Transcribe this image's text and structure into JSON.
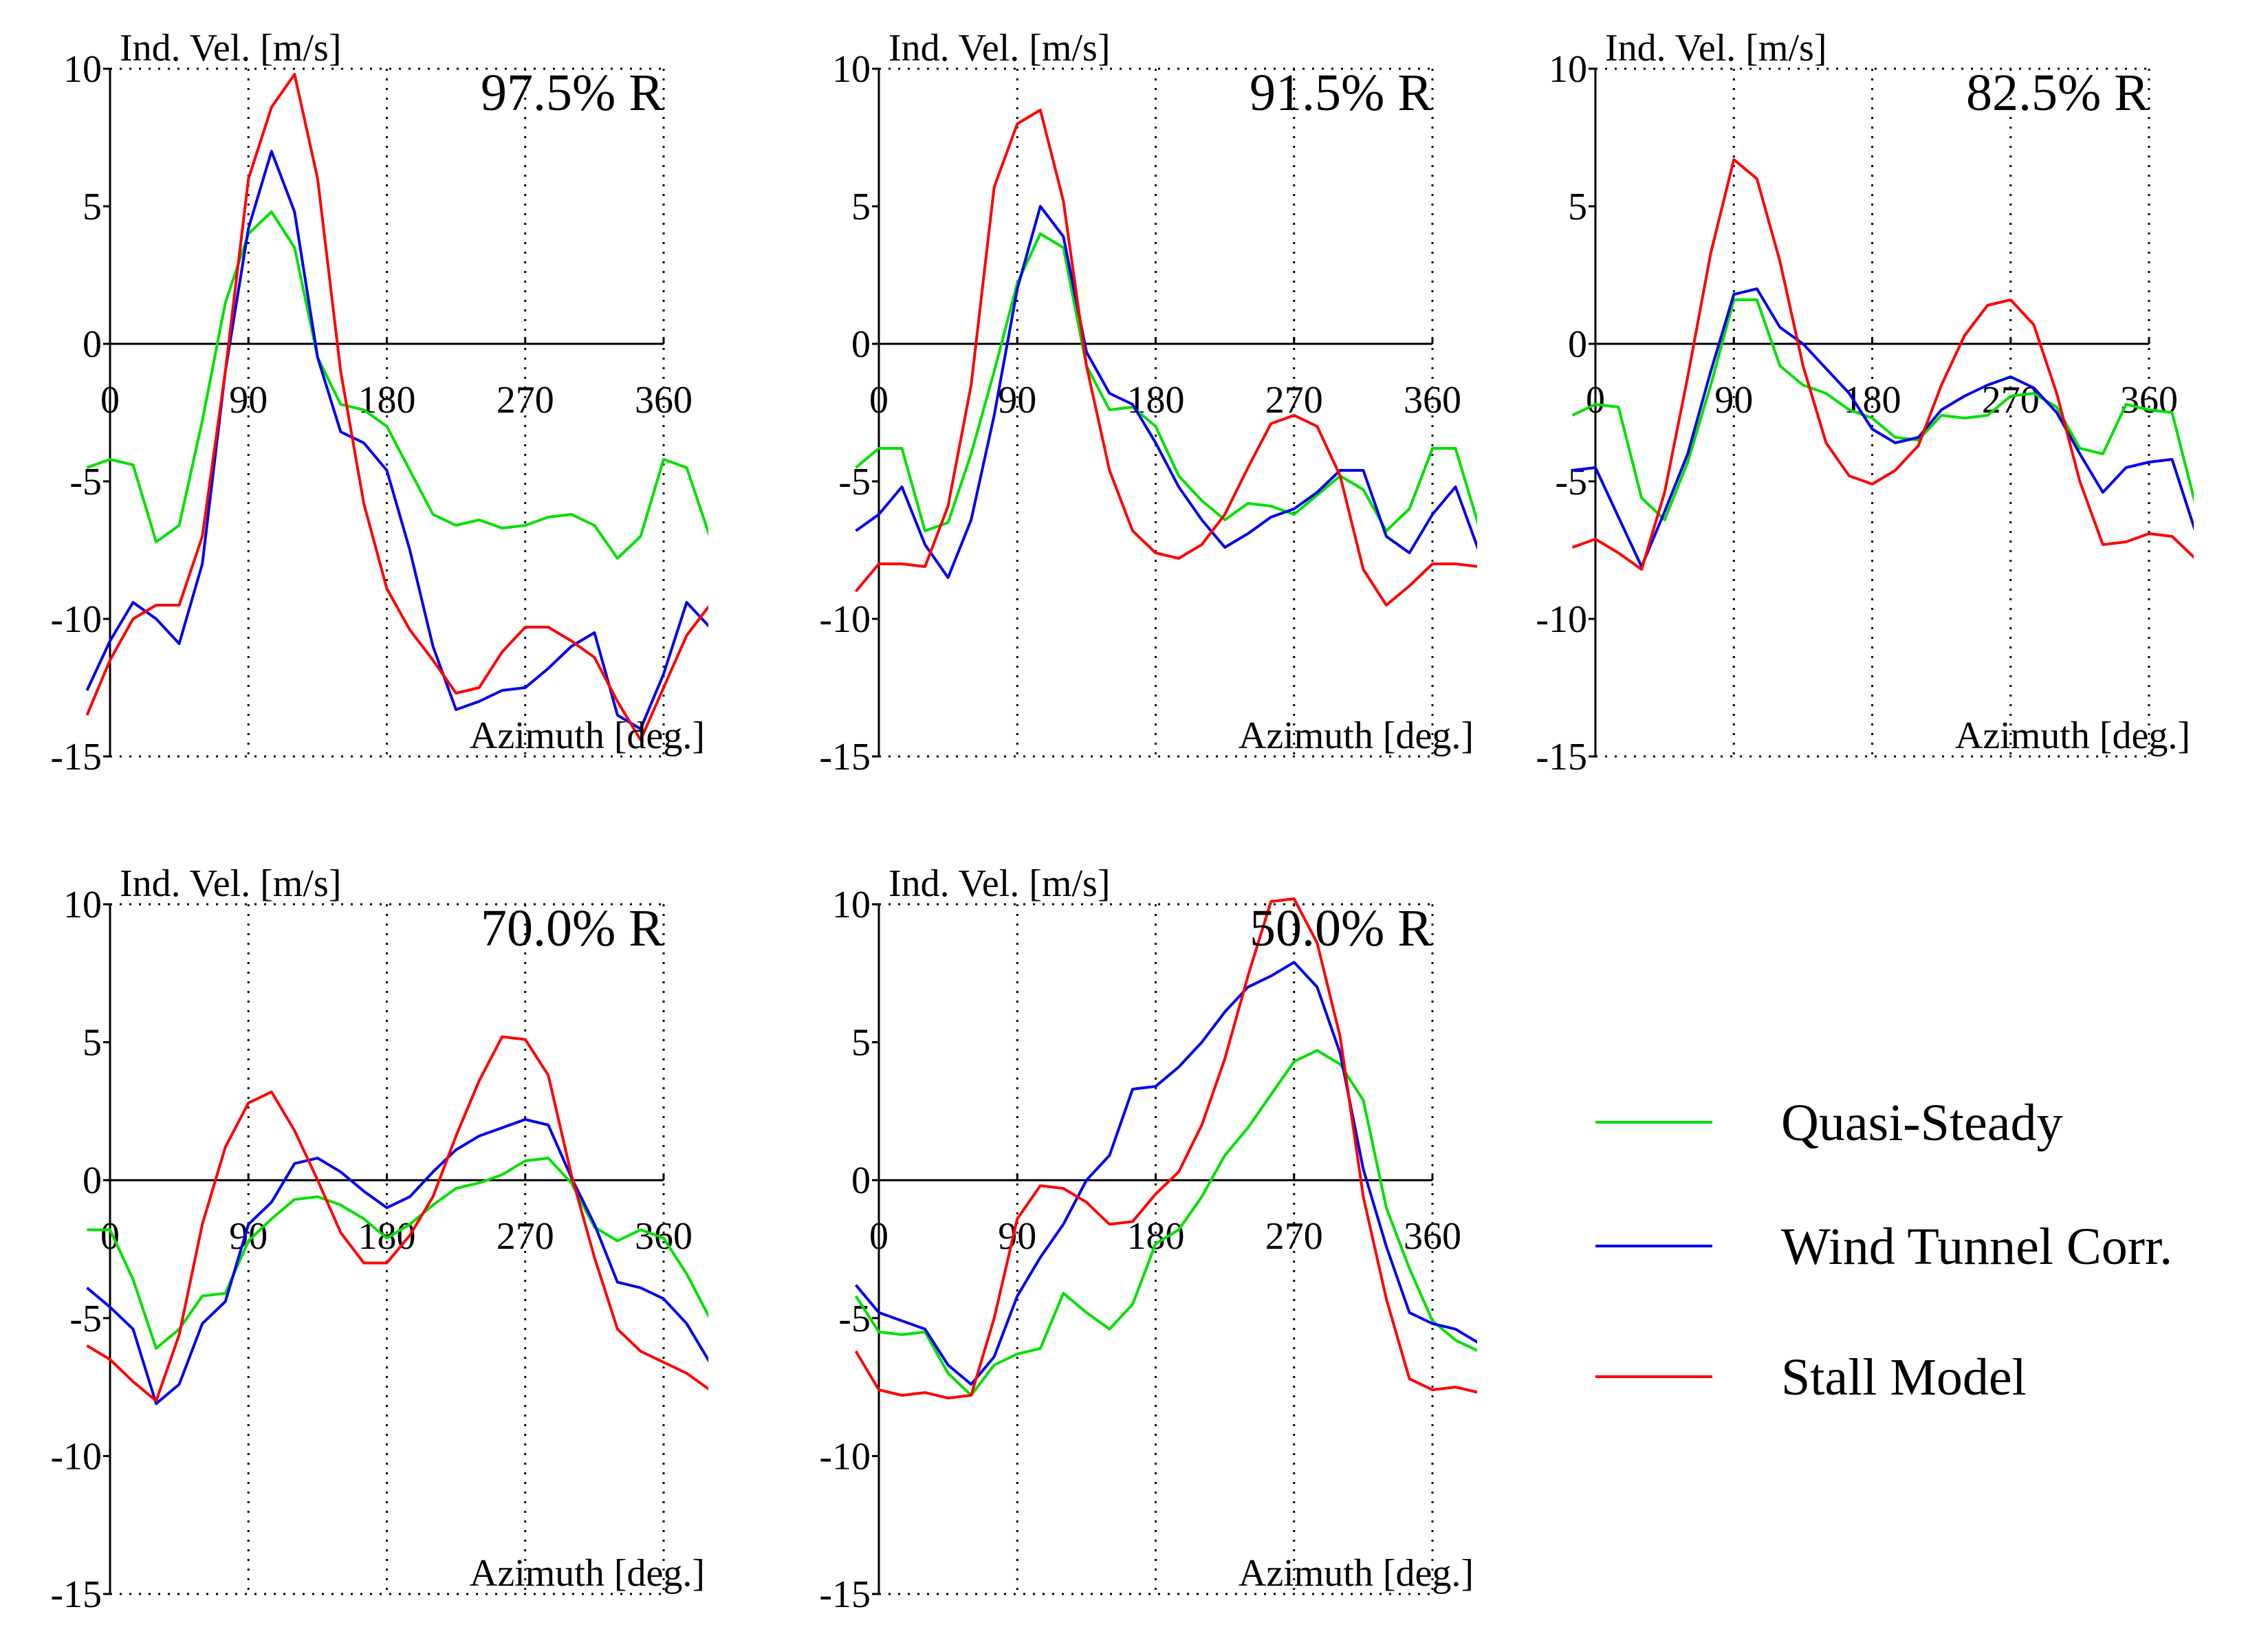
{
  "chart_data": [
    {
      "type": "line",
      "title": "97.5% R",
      "xlabel": "Azimuth [deg.]",
      "ylabel": "Ind. Vel. [m/s]",
      "xlim": [
        0,
        360
      ],
      "ylim": [
        -15,
        10
      ],
      "xticks": [
        0,
        90,
        180,
        270,
        360
      ],
      "yticks": [
        10,
        5,
        0,
        -5,
        -10,
        -15
      ],
      "grid": "dotted",
      "series": [
        {
          "name": "Quasi-Steady",
          "color": "#00e000",
          "x": [
            -15,
            0,
            15,
            30,
            45,
            60,
            75,
            90,
            105,
            120,
            135,
            150,
            165,
            180,
            195,
            210,
            225,
            240,
            255,
            270,
            285,
            300,
            315,
            330,
            345,
            360,
            375,
            390
          ],
          "y": [
            -4.5,
            -4.2,
            -4.4,
            -7.2,
            -6.6,
            -2.8,
            1.5,
            4.0,
            4.8,
            3.5,
            -0.5,
            -2.2,
            -2.4,
            -3.0,
            -4.6,
            -6.2,
            -6.6,
            -6.4,
            -6.7,
            -6.6,
            -6.3,
            -6.2,
            -6.6,
            -7.8,
            -7.0,
            -4.2,
            -4.5,
            -7.0
          ]
        },
        {
          "name": "Wind Tunnel Corr.",
          "color": "#0000ee",
          "x": [
            -15,
            0,
            15,
            30,
            45,
            60,
            75,
            90,
            105,
            120,
            135,
            150,
            165,
            180,
            195,
            210,
            225,
            240,
            255,
            270,
            285,
            300,
            315,
            330,
            345,
            360,
            375,
            390
          ],
          "y": [
            -12.6,
            -10.8,
            -9.4,
            -10.0,
            -10.9,
            -8.0,
            -1.0,
            4.2,
            7.0,
            4.8,
            -0.5,
            -3.2,
            -3.6,
            -4.6,
            -7.5,
            -11.0,
            -13.3,
            -13.0,
            -12.6,
            -12.5,
            -11.8,
            -11.0,
            -10.5,
            -13.5,
            -14.0,
            -12.0,
            -9.4,
            -10.3
          ]
        },
        {
          "name": "Stall Model",
          "color": "#ff0000",
          "x": [
            -15,
            0,
            15,
            30,
            45,
            60,
            75,
            90,
            105,
            120,
            135,
            150,
            165,
            180,
            195,
            210,
            225,
            240,
            255,
            270,
            285,
            300,
            315,
            330,
            345,
            360,
            375,
            390
          ],
          "y": [
            -13.5,
            -11.5,
            -10.0,
            -9.5,
            -9.5,
            -7.0,
            -1.0,
            6.0,
            8.6,
            9.8,
            6.0,
            -1.0,
            -5.8,
            -8.9,
            -10.4,
            -11.5,
            -12.7,
            -12.5,
            -11.2,
            -10.3,
            -10.3,
            -10.8,
            -11.4,
            -13.0,
            -14.4,
            -12.5,
            -10.6,
            -9.5
          ]
        }
      ]
    },
    {
      "type": "line",
      "title": "91.5% R",
      "xlabel": "Azimuth [deg.]",
      "ylabel": "Ind. Vel. [m/s]",
      "xlim": [
        0,
        360
      ],
      "ylim": [
        -15,
        10
      ],
      "xticks": [
        0,
        90,
        180,
        270,
        360
      ],
      "yticks": [
        10,
        5,
        0,
        -5,
        -10,
        -15
      ],
      "grid": "dotted",
      "series": [
        {
          "name": "Quasi-Steady",
          "color": "#00e000",
          "x": [
            -15,
            0,
            15,
            30,
            45,
            60,
            75,
            90,
            105,
            120,
            135,
            150,
            165,
            180,
            195,
            210,
            225,
            240,
            255,
            270,
            285,
            300,
            315,
            330,
            345,
            360,
            375,
            390
          ],
          "y": [
            -4.5,
            -3.8,
            -3.8,
            -6.8,
            -6.5,
            -4.0,
            -1.0,
            2.2,
            4.0,
            3.5,
            -0.8,
            -2.4,
            -2.3,
            -3.0,
            -4.8,
            -5.7,
            -6.4,
            -5.8,
            -5.9,
            -6.2,
            -5.5,
            -4.8,
            -5.3,
            -6.8,
            -6.0,
            -3.8,
            -3.8,
            -6.6
          ]
        },
        {
          "name": "Wind Tunnel Corr.",
          "color": "#0000ee",
          "x": [
            -15,
            0,
            15,
            30,
            45,
            60,
            75,
            90,
            105,
            120,
            135,
            150,
            165,
            180,
            195,
            210,
            225,
            240,
            255,
            270,
            285,
            300,
            315,
            330,
            345,
            360,
            375,
            390
          ],
          "y": [
            -6.8,
            -6.2,
            -5.2,
            -7.3,
            -8.5,
            -6.4,
            -2.6,
            2.0,
            5.0,
            3.9,
            -0.3,
            -1.8,
            -2.2,
            -3.6,
            -5.2,
            -6.4,
            -7.4,
            -6.9,
            -6.3,
            -6.0,
            -5.4,
            -4.6,
            -4.6,
            -7.0,
            -7.6,
            -6.2,
            -5.2,
            -7.5
          ]
        },
        {
          "name": "Stall Model",
          "color": "#ff0000",
          "x": [
            -15,
            0,
            15,
            30,
            45,
            60,
            75,
            90,
            105,
            120,
            135,
            150,
            165,
            180,
            195,
            210,
            225,
            240,
            255,
            270,
            285,
            300,
            315,
            330,
            345,
            360,
            375,
            390
          ],
          "y": [
            -9.0,
            -8.0,
            -8.0,
            -8.1,
            -5.9,
            -1.5,
            5.7,
            8.0,
            8.5,
            5.2,
            -0.8,
            -4.6,
            -6.8,
            -7.6,
            -7.8,
            -7.3,
            -6.2,
            -4.5,
            -2.9,
            -2.6,
            -3.0,
            -4.8,
            -8.2,
            -9.5,
            -8.8,
            -8.0,
            -8.0,
            -8.1
          ]
        }
      ]
    },
    {
      "type": "line",
      "title": "82.5% R",
      "xlabel": "Azimuth [deg.]",
      "ylabel": "Ind. Vel. [m/s]",
      "xlim": [
        0,
        360
      ],
      "ylim": [
        -15,
        10
      ],
      "xticks": [
        0,
        90,
        180,
        270,
        360
      ],
      "yticks": [
        10,
        5,
        0,
        -5,
        -10,
        -15
      ],
      "grid": "dotted",
      "series": [
        {
          "name": "Quasi-Steady",
          "color": "#00e000",
          "x": [
            -15,
            0,
            15,
            30,
            45,
            60,
            75,
            90,
            105,
            120,
            135,
            150,
            165,
            180,
            195,
            210,
            225,
            240,
            255,
            270,
            285,
            300,
            315,
            330,
            345,
            360,
            375,
            390
          ],
          "y": [
            -2.6,
            -2.2,
            -2.3,
            -5.6,
            -6.4,
            -4.3,
            -1.5,
            1.6,
            1.6,
            -0.8,
            -1.5,
            -1.8,
            -2.4,
            -2.7,
            -3.4,
            -3.5,
            -2.6,
            -2.7,
            -2.6,
            -1.9,
            -1.8,
            -2.3,
            -3.8,
            -4.0,
            -2.2,
            -2.4,
            -2.5,
            -5.8
          ]
        },
        {
          "name": "Wind Tunnel Corr.",
          "color": "#0000ee",
          "x": [
            -15,
            0,
            15,
            30,
            45,
            60,
            75,
            90,
            105,
            120,
            135,
            150,
            165,
            180,
            195,
            210,
            225,
            240,
            255,
            270,
            285,
            300,
            315,
            330,
            345,
            360,
            375,
            390
          ],
          "y": [
            -4.6,
            -4.5,
            -6.3,
            -8.1,
            -6.1,
            -4.0,
            -1.0,
            1.8,
            2.0,
            0.6,
            0.0,
            -0.9,
            -1.8,
            -3.1,
            -3.6,
            -3.4,
            -2.4,
            -1.9,
            -1.5,
            -1.2,
            -1.6,
            -2.5,
            -4.0,
            -5.4,
            -4.5,
            -4.3,
            -4.2,
            -6.8
          ]
        },
        {
          "name": "Stall Model",
          "color": "#ff0000",
          "x": [
            -15,
            0,
            15,
            30,
            45,
            60,
            75,
            90,
            105,
            120,
            135,
            150,
            165,
            180,
            195,
            210,
            225,
            240,
            255,
            270,
            285,
            300,
            315,
            330,
            345,
            360,
            375,
            390
          ],
          "y": [
            -7.4,
            -7.1,
            -7.6,
            -8.2,
            -5.4,
            -1.2,
            3.3,
            6.7,
            6.0,
            3.0,
            -0.8,
            -3.6,
            -4.8,
            -5.1,
            -4.6,
            -3.7,
            -1.5,
            0.3,
            1.4,
            1.6,
            0.7,
            -1.8,
            -5.0,
            -7.3,
            -7.2,
            -6.9,
            -7.0,
            -7.8
          ]
        }
      ]
    },
    {
      "type": "line",
      "title": "70.0% R",
      "xlabel": "Azimuth [deg.]",
      "ylabel": "Ind. Vel. [m/s]",
      "xlim": [
        0,
        360
      ],
      "ylim": [
        -15,
        10
      ],
      "xticks": [
        0,
        90,
        180,
        270,
        360
      ],
      "yticks": [
        10,
        5,
        0,
        -5,
        -10,
        -15
      ],
      "grid": "dotted",
      "series": [
        {
          "name": "Quasi-Steady",
          "color": "#00e000",
          "x": [
            -15,
            0,
            15,
            30,
            45,
            60,
            75,
            90,
            105,
            120,
            135,
            150,
            165,
            180,
            195,
            210,
            225,
            240,
            255,
            270,
            285,
            300,
            315,
            330,
            345,
            360,
            375,
            390
          ],
          "y": [
            -1.8,
            -1.8,
            -3.6,
            -6.1,
            -5.4,
            -4.2,
            -4.1,
            -2.2,
            -1.4,
            -0.7,
            -0.6,
            -0.9,
            -1.4,
            -2.1,
            -1.6,
            -0.9,
            -0.3,
            -0.1,
            0.2,
            0.7,
            0.8,
            -0.1,
            -1.7,
            -2.2,
            -1.8,
            -2.1,
            -3.4,
            -5.0
          ]
        },
        {
          "name": "Wind Tunnel Corr.",
          "color": "#0000ee",
          "x": [
            -15,
            0,
            15,
            30,
            45,
            60,
            75,
            90,
            105,
            120,
            135,
            150,
            165,
            180,
            195,
            210,
            225,
            240,
            255,
            270,
            285,
            300,
            315,
            330,
            345,
            360,
            375,
            390
          ],
          "y": [
            -3.9,
            -4.6,
            -5.4,
            -8.1,
            -7.4,
            -5.2,
            -4.4,
            -1.6,
            -0.8,
            0.6,
            0.8,
            0.3,
            -0.4,
            -1.0,
            -0.6,
            0.3,
            1.1,
            1.6,
            1.9,
            2.2,
            2.0,
            0.1,
            -1.6,
            -3.7,
            -3.9,
            -4.3,
            -5.2,
            -6.6
          ]
        },
        {
          "name": "Stall Model",
          "color": "#ff0000",
          "x": [
            -15,
            0,
            15,
            30,
            45,
            60,
            75,
            90,
            105,
            120,
            135,
            150,
            165,
            180,
            195,
            210,
            225,
            240,
            255,
            270,
            285,
            300,
            315,
            330,
            345,
            360,
            375,
            390
          ],
          "y": [
            -6.0,
            -6.5,
            -7.3,
            -8.0,
            -5.6,
            -1.6,
            1.2,
            2.8,
            3.2,
            1.8,
            0.0,
            -1.9,
            -3.0,
            -3.0,
            -2.0,
            -0.6,
            1.6,
            3.6,
            5.2,
            5.1,
            3.8,
            0.2,
            -2.8,
            -5.4,
            -6.2,
            -6.6,
            -7.0,
            -7.6
          ]
        }
      ]
    },
    {
      "type": "line",
      "title": "50.0% R",
      "xlabel": "Azimuth [deg.]",
      "ylabel": "Ind. Vel. [m/s]",
      "xlim": [
        0,
        360
      ],
      "ylim": [
        -15,
        10
      ],
      "xticks": [
        0,
        90,
        180,
        270,
        360
      ],
      "yticks": [
        10,
        5,
        0,
        -5,
        -10,
        -15
      ],
      "grid": "dotted",
      "series": [
        {
          "name": "Quasi-Steady",
          "color": "#00e000",
          "x": [
            -15,
            0,
            15,
            30,
            45,
            60,
            75,
            90,
            105,
            120,
            135,
            150,
            165,
            180,
            195,
            210,
            225,
            240,
            255,
            270,
            285,
            300,
            315,
            330,
            345,
            360,
            375,
            390
          ],
          "y": [
            -4.2,
            -5.5,
            -5.6,
            -5.5,
            -7.0,
            -7.8,
            -6.7,
            -6.3,
            -6.1,
            -4.1,
            -4.8,
            -5.4,
            -4.5,
            -2.3,
            -1.8,
            -0.6,
            0.9,
            1.9,
            3.1,
            4.3,
            4.7,
            4.2,
            2.9,
            -1.0,
            -3.2,
            -5.1,
            -5.8,
            -6.2
          ]
        },
        {
          "name": "Wind Tunnel Corr.",
          "color": "#0000ee",
          "x": [
            -15,
            0,
            15,
            30,
            45,
            60,
            75,
            90,
            105,
            120,
            135,
            150,
            165,
            180,
            195,
            210,
            225,
            240,
            255,
            270,
            285,
            300,
            315,
            330,
            345,
            360,
            375,
            390
          ],
          "y": [
            -3.8,
            -4.8,
            -5.1,
            -5.4,
            -6.7,
            -7.4,
            -6.4,
            -4.2,
            -2.8,
            -1.6,
            0.0,
            0.9,
            3.3,
            3.4,
            4.1,
            5.0,
            6.1,
            7.0,
            7.4,
            7.9,
            7.0,
            4.6,
            0.4,
            -2.4,
            -4.8,
            -5.2,
            -5.4,
            -5.9
          ]
        },
        {
          "name": "Stall Model",
          "color": "#ff0000",
          "x": [
            -15,
            0,
            15,
            30,
            45,
            60,
            75,
            90,
            105,
            120,
            135,
            150,
            165,
            180,
            195,
            210,
            225,
            240,
            255,
            270,
            285,
            300,
            315,
            330,
            345,
            360,
            375,
            390
          ],
          "y": [
            -6.2,
            -7.6,
            -7.8,
            -7.7,
            -7.9,
            -7.8,
            -5.0,
            -1.4,
            -0.2,
            -0.3,
            -0.8,
            -1.6,
            -1.5,
            -0.5,
            0.3,
            2.0,
            4.4,
            7.4,
            10.1,
            10.2,
            8.6,
            5.2,
            -0.6,
            -4.3,
            -7.2,
            -7.6,
            -7.5,
            -7.7
          ]
        }
      ]
    }
  ],
  "legend": {
    "placement": "right",
    "entries": [
      {
        "label": "Quasi-Steady",
        "color": "#00e000"
      },
      {
        "label": "Wind Tunnel Corr.",
        "color": "#0000ee"
      },
      {
        "label": "Stall Model",
        "color": "#ff0000"
      }
    ]
  }
}
